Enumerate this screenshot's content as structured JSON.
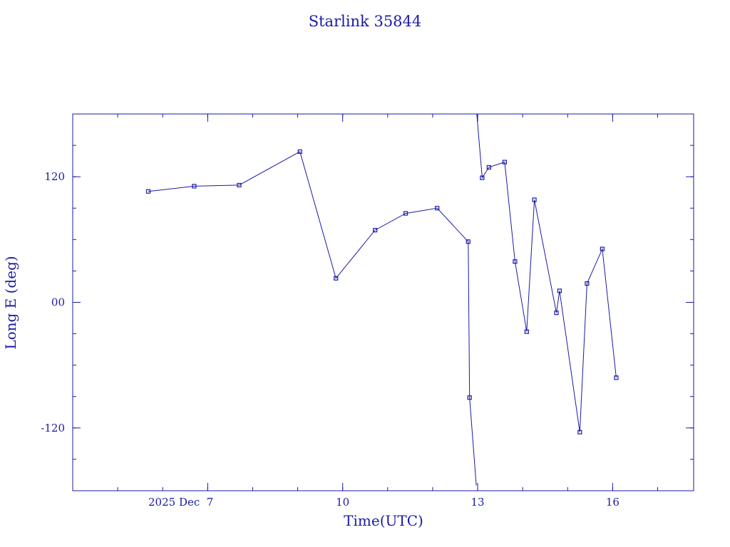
{
  "chart_data": {
    "type": "line",
    "title": "Starlink 35844",
    "xlabel": "Time(UTC)",
    "ylabel": "Long E (deg)",
    "x_unit": "days (December 2025)",
    "xlim": [
      4.0,
      17.8
    ],
    "ylim": [
      -180,
      180
    ],
    "x_ticks": [
      {
        "value": 7,
        "label": "2025 Dec  7"
      },
      {
        "value": 10,
        "label": "10"
      },
      {
        "value": 13,
        "label": "13"
      },
      {
        "value": 16,
        "label": "16"
      }
    ],
    "y_ticks": [
      {
        "value": 120,
        "label": "120"
      },
      {
        "value": 0,
        "label": "00"
      },
      {
        "value": -120,
        "label": "-120"
      }
    ],
    "grid": false,
    "series": [
      {
        "color": "#1a1aa6",
        "points": [
          {
            "x": 5.68,
            "y": 106
          },
          {
            "x": 6.7,
            "y": 111
          },
          {
            "x": 7.7,
            "y": 112
          },
          {
            "x": 9.05,
            "y": 144
          },
          {
            "x": 9.85,
            "y": 23
          },
          {
            "x": 10.72,
            "y": 69
          },
          {
            "x": 11.4,
            "y": 85
          },
          {
            "x": 12.1,
            "y": 90
          },
          {
            "x": 12.79,
            "y": 58
          },
          {
            "x": 12.82,
            "y": -91
          },
          {
            "x": 12.97,
            "y": -175,
            "break_after": true
          },
          {
            "x": 12.98,
            "y": 180
          },
          {
            "x": 13.1,
            "y": 119
          },
          {
            "x": 13.25,
            "y": 129
          },
          {
            "x": 13.6,
            "y": 134
          },
          {
            "x": 13.83,
            "y": 39
          },
          {
            "x": 14.09,
            "y": -28
          },
          {
            "x": 14.26,
            "y": 98
          },
          {
            "x": 14.75,
            "y": -10
          },
          {
            "x": 14.82,
            "y": 11
          },
          {
            "x": 15.27,
            "y": -124
          },
          {
            "x": 15.43,
            "y": 18
          },
          {
            "x": 15.77,
            "y": 51
          },
          {
            "x": 16.08,
            "y": -72
          }
        ]
      }
    ]
  }
}
